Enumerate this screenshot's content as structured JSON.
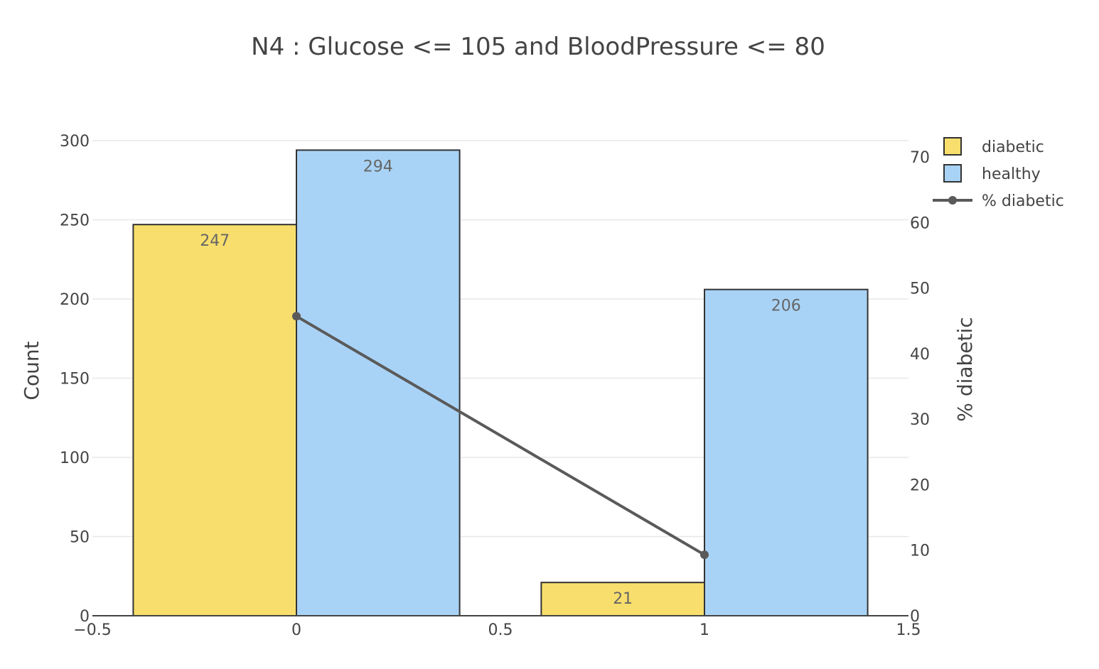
{
  "chart_data": {
    "type": "bar",
    "title": "N4 : Glucose <= 105 and BloodPressure <= 80",
    "x": [
      0,
      1
    ],
    "xlim": [
      -0.5,
      1.5
    ],
    "x_ticks": [
      "−0.5",
      "0",
      "0.5",
      "1",
      "1.5"
    ],
    "x_tick_values": [
      -0.5,
      0,
      0.5,
      1,
      1.5
    ],
    "ylabel": "Count",
    "ylim": [
      0,
      300
    ],
    "y_ticks": [
      0,
      50,
      100,
      150,
      200,
      250,
      300
    ],
    "y2label": "% diabetic",
    "y2lim": [
      0,
      72.5
    ],
    "y2_ticks": [
      0,
      10,
      20,
      30,
      40,
      50,
      60,
      70
    ],
    "grid": true,
    "legend_position": "top-right",
    "series": [
      {
        "name": "diabetic",
        "type": "bar",
        "axis": "y",
        "values": [
          247,
          21
        ],
        "labels": [
          "247",
          "21"
        ],
        "color": "#f8de6c"
      },
      {
        "name": "healthy",
        "type": "bar",
        "axis": "y",
        "values": [
          294,
          206
        ],
        "labels": [
          "294",
          "206"
        ],
        "color": "#a9d3f6"
      },
      {
        "name": "% diabetic",
        "type": "line",
        "axis": "y2",
        "values": [
          45.7,
          9.3
        ],
        "color": "#5a5a5a"
      }
    ]
  }
}
